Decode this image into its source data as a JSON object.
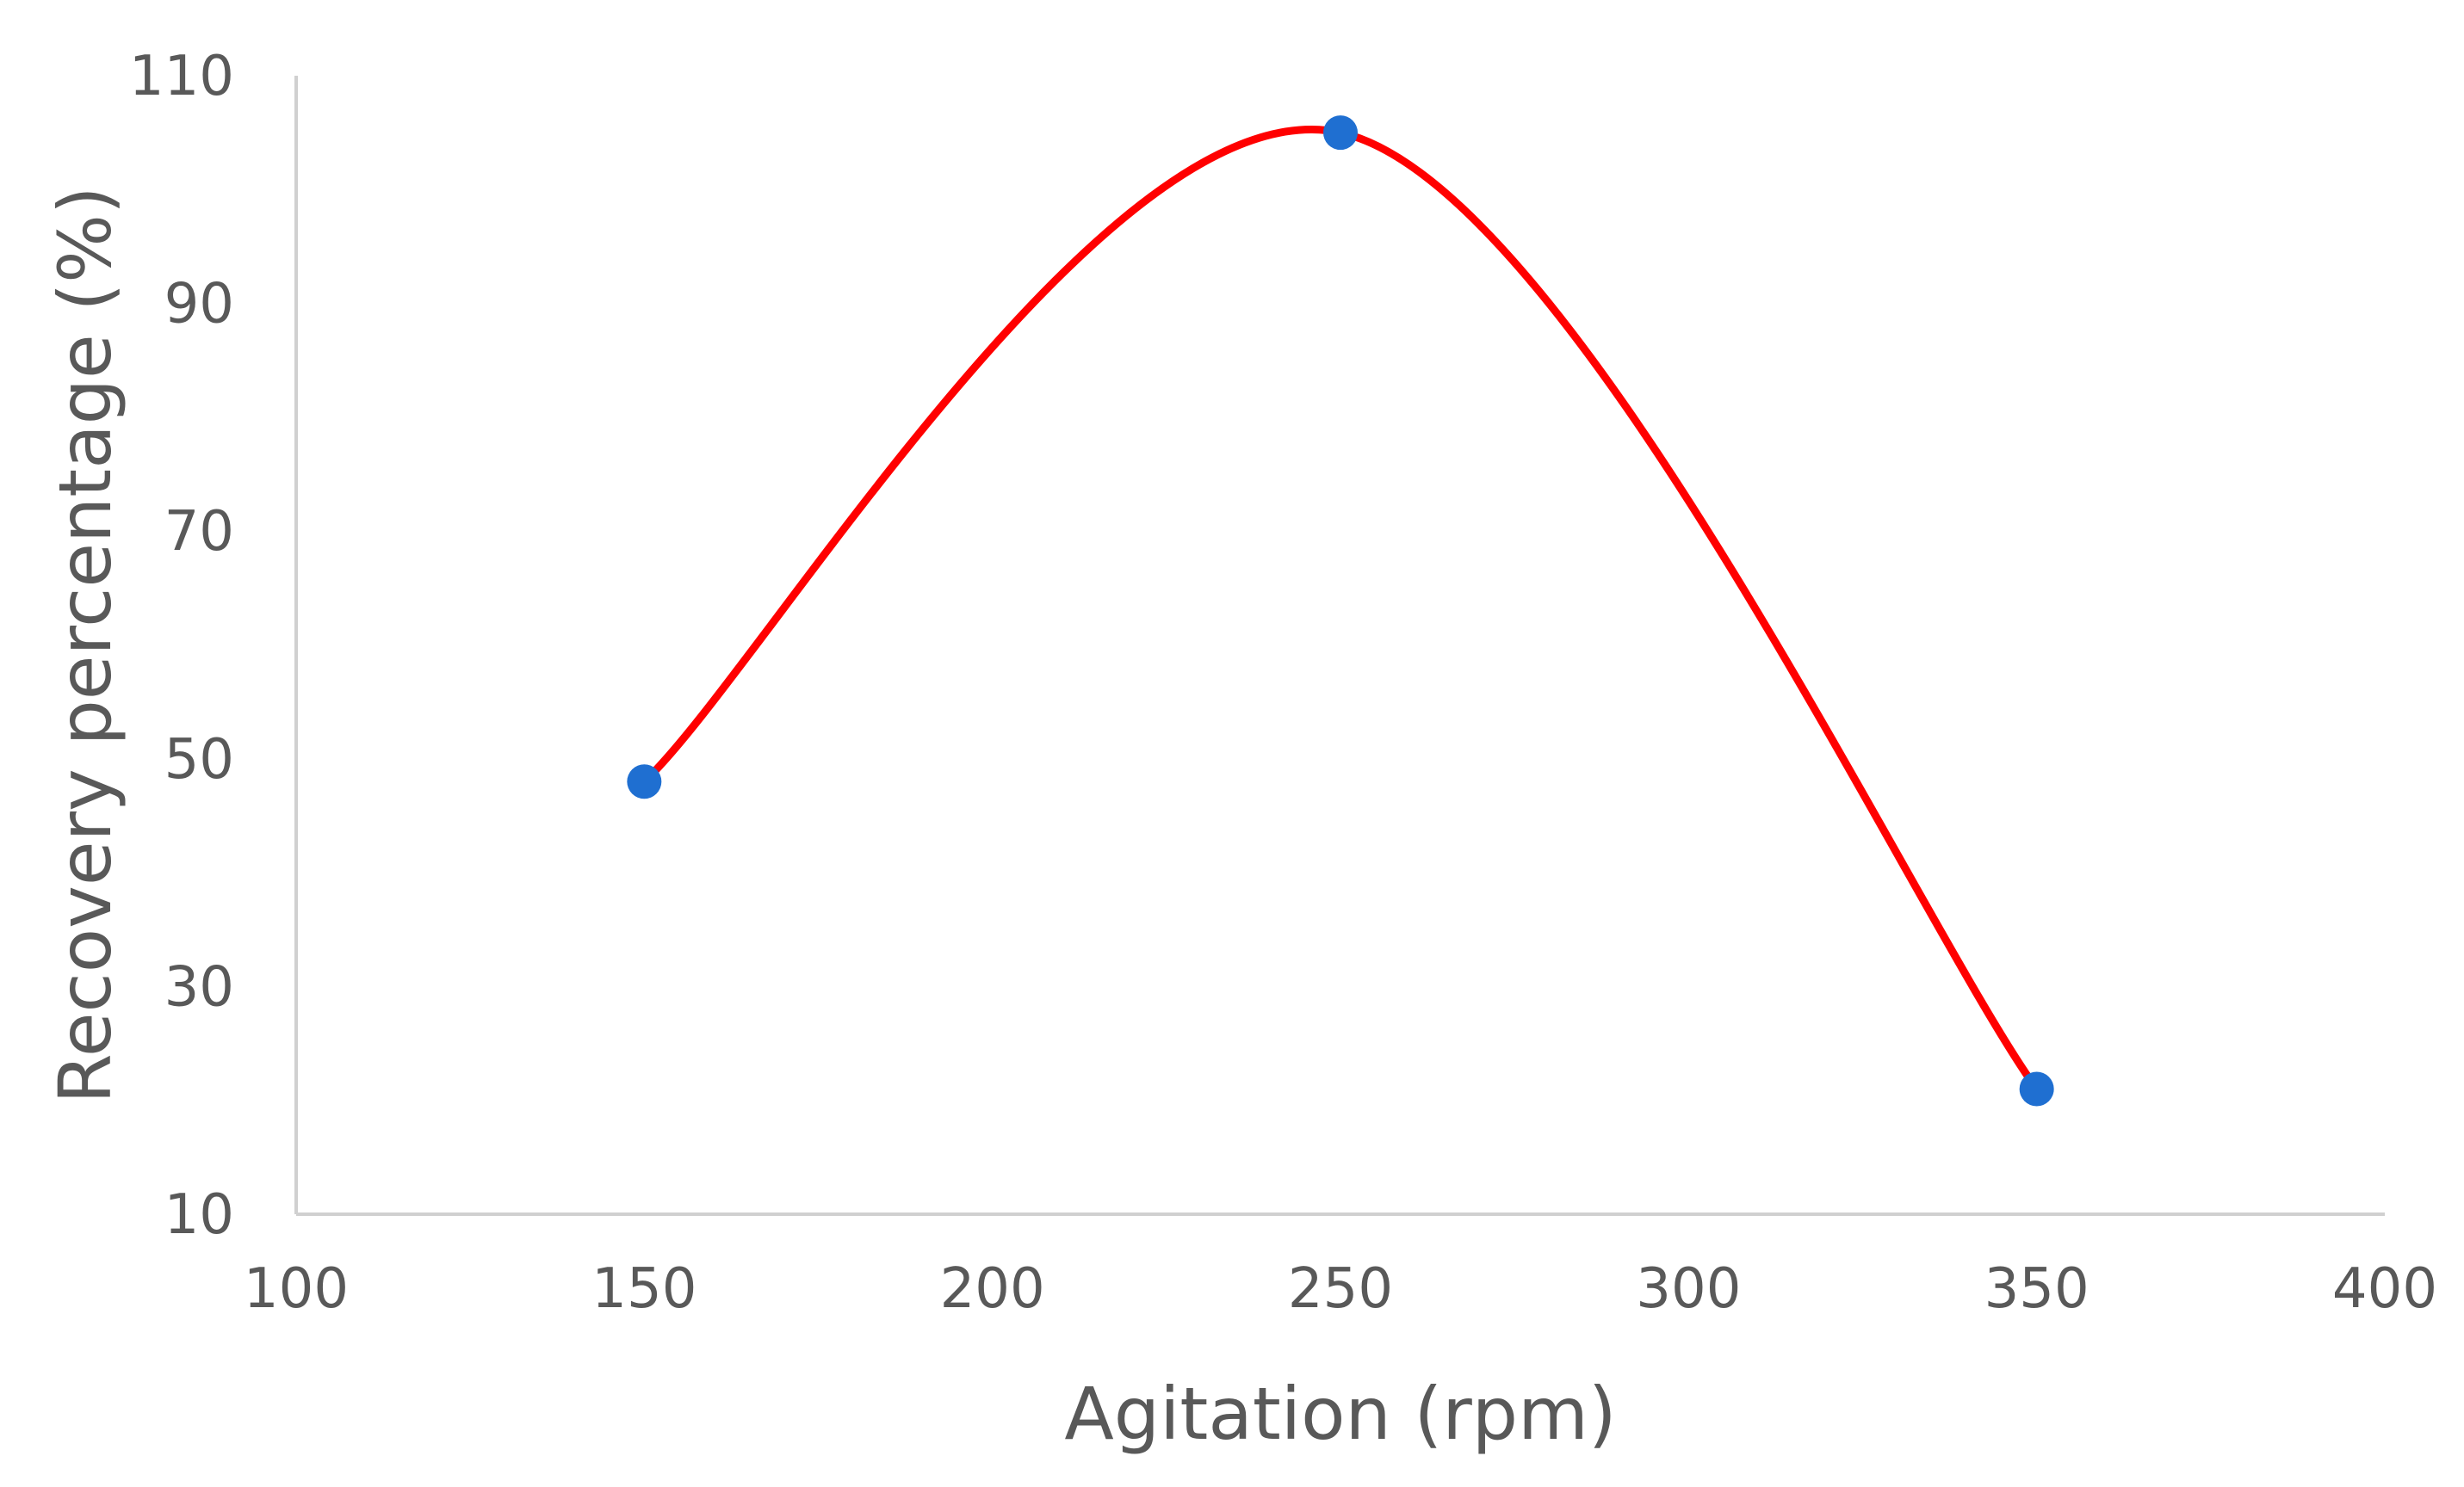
{
  "chart_data": {
    "type": "line",
    "title": "",
    "xlabel": "Agitation (rpm)",
    "ylabel": "Recovery percentage (%)",
    "xlim": [
      100,
      400
    ],
    "ylim": [
      10,
      110
    ],
    "xticks": [
      100,
      150,
      200,
      250,
      300,
      350,
      400
    ],
    "yticks": [
      10,
      30,
      50,
      70,
      90,
      110
    ],
    "xtick_labels": [
      "100",
      "150",
      "200",
      "250",
      "300",
      "350",
      "400"
    ],
    "ytick_labels": [
      "10",
      "30",
      "50",
      "70",
      "90",
      "110"
    ],
    "grid": false,
    "legend": "none",
    "series": [
      {
        "name": "Recovery",
        "x": [
          150,
          250,
          350
        ],
        "values": [
          48,
          105,
          21
        ],
        "line_color": "#ff0000",
        "marker_color": "#1f6fd1",
        "smooth": true
      }
    ]
  }
}
